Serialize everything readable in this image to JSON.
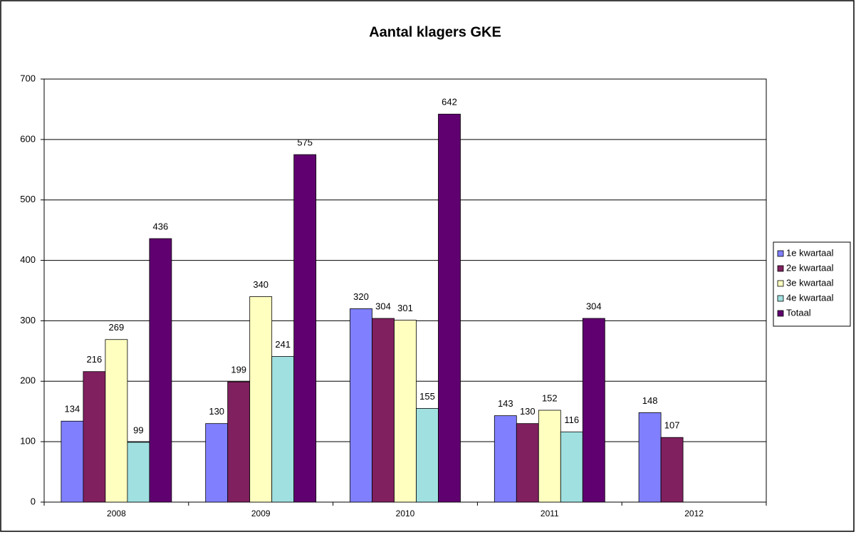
{
  "chart_data": {
    "type": "bar",
    "title": "Aantal klagers GKE",
    "categories": [
      "2008",
      "2009",
      "2010",
      "2011",
      "2012"
    ],
    "series": [
      {
        "name": "1e kwartaal",
        "color": "#8080ff",
        "values": [
          134,
          130,
          320,
          143,
          148
        ]
      },
      {
        "name": "2e kwartaal",
        "color": "#80205f",
        "values": [
          216,
          199,
          304,
          130,
          107
        ]
      },
      {
        "name": "3e kwartaal",
        "color": "#ffffc0",
        "values": [
          269,
          340,
          301,
          152,
          null
        ]
      },
      {
        "name": "4e kwartaal",
        "color": "#a0e0e0",
        "values": [
          99,
          241,
          155,
          116,
          null
        ]
      },
      {
        "name": "Totaal",
        "color": "#600070",
        "values": [
          436,
          575,
          642,
          304,
          null
        ]
      }
    ],
    "ylim": [
      0,
      700
    ],
    "yticks": [
      0,
      100,
      200,
      300,
      400,
      500,
      600,
      700
    ],
    "grid": true,
    "legend": "right"
  }
}
